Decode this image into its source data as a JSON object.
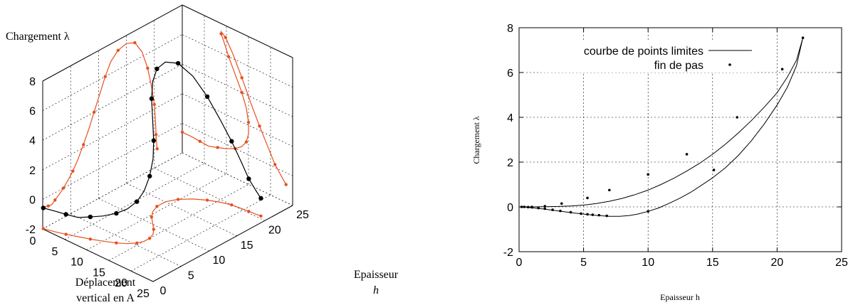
{
  "chart_data": [
    {
      "type": "line",
      "projection": "3d",
      "axes": {
        "x_label_line1": "Déplacement",
        "x_label_line2": "vertical en A",
        "y_label_line1": "Epaisseur",
        "y_label_line2": "h",
        "z_label": "Chargement λ",
        "x_ticks": [
          "0",
          "5",
          "10",
          "15",
          "20",
          "25"
        ],
        "y_ticks": [
          "0",
          "5",
          "10",
          "15",
          "20",
          "25"
        ],
        "z_ticks": [
          "-2",
          "0",
          "2",
          "4",
          "6",
          "8"
        ],
        "xlim": [
          0,
          25
        ],
        "ylim": [
          0,
          25
        ],
        "zlim": [
          -2,
          8
        ]
      },
      "grid": true,
      "colors": {
        "curve": "#000000",
        "projections": "#e8501e"
      },
      "series": [
        {
          "points": [
            [
              0,
              0.1,
              -0.6
            ],
            [
              2,
              0.5,
              -0.6
            ],
            [
              4,
              1.0,
              -0.65
            ],
            [
              6,
              1.6,
              -0.7
            ],
            [
              8,
              2.2,
              -0.5
            ],
            [
              10,
              2.9,
              -0.3
            ],
            [
              12,
              3.7,
              0.0
            ],
            [
              13.5,
              4.5,
              0.35
            ],
            [
              14.5,
              5.4,
              0.8
            ],
            [
              15,
              6.3,
              1.4
            ],
            [
              15,
              7.3,
              2.2
            ],
            [
              14.5,
              8.3,
              3.1
            ],
            [
              13.5,
              9.2,
              4.0
            ],
            [
              12,
              10.2,
              5.0
            ],
            [
              10.5,
              11.2,
              6.0
            ],
            [
              9.5,
              12.2,
              6.8
            ],
            [
              8.8,
              13.5,
              7.3
            ],
            [
              8.8,
              15.0,
              7.45
            ],
            [
              9.8,
              16.5,
              7.2
            ],
            [
              11.5,
              17.8,
              6.3
            ],
            [
              13.5,
              18.8,
              5.0
            ],
            [
              15.5,
              19.5,
              3.6
            ],
            [
              17.5,
              20.0,
              2.3
            ],
            [
              19.5,
              20.2,
              1.1
            ],
            [
              21,
              20.3,
              0.2
            ],
            [
              22.5,
              20.4,
              -0.4
            ],
            [
              23.5,
              20.5,
              -0.8
            ]
          ]
        }
      ]
    },
    {
      "type": "scatter",
      "xlabel": "Epaisseur h",
      "ylabel": "Chargement λ",
      "xlim": [
        0,
        25
      ],
      "ylim": [
        -2,
        8
      ],
      "x_ticks": [
        0,
        5,
        10,
        15,
        20,
        25
      ],
      "y_ticks": [
        -2,
        0,
        2,
        4,
        6,
        8
      ],
      "grid": true,
      "legend_position": "top-left",
      "series": [
        {
          "name": "courbe de points limites",
          "style": "line",
          "x": [
            0.0,
            0.3,
            0.6,
            1.0,
            1.5,
            2.0,
            2.6,
            3.3,
            4.1,
            5.0,
            6.0,
            7.0,
            7.8,
            8.5,
            9.2,
            10.0,
            10.8,
            11.6,
            12.5,
            13.3,
            14.1,
            15.0,
            16.0,
            17.0,
            18.0,
            19.0,
            20.0,
            20.8,
            21.5,
            22.0,
            21.5,
            20.8,
            20.0,
            19.0,
            18.0,
            17.0,
            16.0,
            15.0,
            14.0,
            13.0,
            12.0,
            11.0,
            10.0,
            9.0,
            8.0,
            7.0,
            6.0,
            5.0,
            4.0,
            3.0,
            2.0,
            1.0,
            0.0
          ],
          "y": [
            0.0,
            -0.01,
            -0.02,
            -0.04,
            -0.07,
            -0.1,
            -0.15,
            -0.2,
            -0.26,
            -0.32,
            -0.38,
            -0.42,
            -0.42,
            -0.39,
            -0.32,
            -0.2,
            -0.05,
            0.15,
            0.4,
            0.65,
            0.95,
            1.3,
            1.75,
            2.3,
            2.95,
            3.7,
            4.55,
            5.35,
            6.3,
            7.55,
            6.55,
            5.8,
            5.1,
            4.45,
            3.85,
            3.3,
            2.8,
            2.35,
            1.95,
            1.6,
            1.28,
            1.0,
            0.75,
            0.55,
            0.38,
            0.25,
            0.15,
            0.08,
            0.04,
            0.02,
            0.01,
            0.0,
            0.0
          ]
        },
        {
          "name": "fin de pas",
          "style": "points",
          "x": [
            0.2,
            0.4,
            0.7,
            1.0,
            1.5,
            2.0,
            2.6,
            3.2,
            4.0,
            4.8,
            5.3,
            5.7,
            6.2,
            6.8,
            10.0,
            15.1,
            20.4,
            22.0,
            16.9,
            13.0,
            10.0,
            7.0,
            5.3,
            3.3,
            2.0,
            1.0
          ],
          "y": [
            0.0,
            0.0,
            -0.01,
            -0.02,
            -0.05,
            -0.08,
            -0.13,
            -0.18,
            -0.24,
            -0.3,
            -0.33,
            -0.35,
            -0.37,
            -0.4,
            -0.2,
            1.65,
            6.15,
            7.55,
            4.0,
            2.35,
            1.45,
            0.75,
            0.4,
            0.15,
            0.03,
            0.0
          ]
        }
      ]
    }
  ]
}
